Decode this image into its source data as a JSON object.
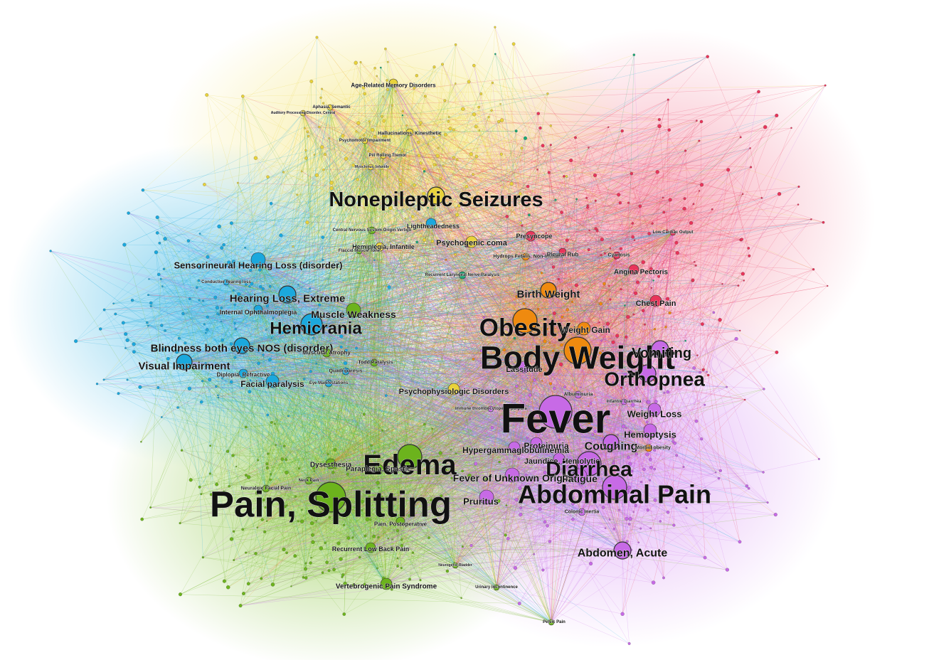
{
  "diagram": {
    "clusters": [
      {
        "id": "yellow",
        "color": "#e8d23a"
      },
      {
        "id": "red",
        "color": "#e8345a"
      },
      {
        "id": "blue",
        "color": "#1ba8dd"
      },
      {
        "id": "green",
        "color": "#6cb31d"
      },
      {
        "id": "purple",
        "color": "#c76ae6"
      },
      {
        "id": "orange",
        "color": "#ef8a0f"
      },
      {
        "id": "teal",
        "color": "#1aa876"
      }
    ],
    "labels": [
      {
        "text": "Age-Related Memory Disorders",
        "cluster": "yellow"
      },
      {
        "text": "Aphasia, Semantic",
        "cluster": "yellow"
      },
      {
        "text": "Auditory Processing Disorder, Central",
        "cluster": "yellow"
      },
      {
        "text": "Hallucinations, Kinesthetic",
        "cluster": "yellow"
      },
      {
        "text": "Psychomotor Impairment",
        "cluster": "yellow"
      },
      {
        "text": "Pill Rolling Tremor",
        "cluster": "yellow"
      },
      {
        "text": "Myoclonus, Infantile",
        "cluster": "yellow"
      },
      {
        "text": "Nonepileptic Seizures",
        "cluster": "yellow"
      },
      {
        "text": "Lightheadedness",
        "cluster": "blue"
      },
      {
        "text": "Central Nervous System Origin Vertigo",
        "cluster": "green"
      },
      {
        "text": "Hemiplegia, Infantile",
        "cluster": "yellow"
      },
      {
        "text": "Flaccid Muscle Tone",
        "cluster": "green"
      },
      {
        "text": "Psychogenic coma",
        "cluster": "yellow"
      },
      {
        "text": "Presyncope",
        "cluster": "red"
      },
      {
        "text": "Cyanosis",
        "cluster": "red"
      },
      {
        "text": "Low Cardiac Output",
        "cluster": "red"
      },
      {
        "text": "Hydrops Fetalis, Non-Immune",
        "cluster": "orange"
      },
      {
        "text": "Pleural Rub",
        "cluster": "red"
      },
      {
        "text": "Angina Pectoris",
        "cluster": "red"
      },
      {
        "text": "Recurrent Laryngeal Nerve Paralysis",
        "cluster": "teal"
      },
      {
        "text": "Sensorineural Hearing Loss (disorder)",
        "cluster": "blue"
      },
      {
        "text": "Conductive hearing loss",
        "cluster": "blue"
      },
      {
        "text": "Hearing Loss, Extreme",
        "cluster": "blue"
      },
      {
        "text": "Internal Ophthalmoplegia",
        "cluster": "blue"
      },
      {
        "text": "Muscle Weakness",
        "cluster": "green"
      },
      {
        "text": "Birth Weight",
        "cluster": "orange"
      },
      {
        "text": "Chest Pain",
        "cluster": "red"
      },
      {
        "text": "Hemicrania",
        "cluster": "blue"
      },
      {
        "text": "Obesity",
        "cluster": "orange"
      },
      {
        "text": "Weight Gain",
        "cluster": "orange"
      },
      {
        "text": "Blindness both eyes NOS (disorder)",
        "cluster": "blue"
      },
      {
        "text": "Muscular Atrophy",
        "cluster": "green"
      },
      {
        "text": "Body Weight",
        "cluster": "orange"
      },
      {
        "text": "Vomiting",
        "cluster": "purple"
      },
      {
        "text": "Visual Impairment",
        "cluster": "blue"
      },
      {
        "text": "Lassitude",
        "cluster": "purple"
      },
      {
        "text": "Orthopnea",
        "cluster": "purple"
      },
      {
        "text": "Diplopia, Refractive",
        "cluster": "blue"
      },
      {
        "text": "Todd Paralysis",
        "cluster": "green"
      },
      {
        "text": "Quadriparesis",
        "cluster": "blue"
      },
      {
        "text": "Facial paralysis",
        "cluster": "blue"
      },
      {
        "text": "Eye Manifestations",
        "cluster": "blue"
      },
      {
        "text": "Albuminuria",
        "cluster": "purple"
      },
      {
        "text": "Psychophysiologic Disorders",
        "cluster": "yellow"
      },
      {
        "text": "Infantile Diarrhea",
        "cluster": "purple"
      },
      {
        "text": "Immune thrombocytopenic purpura",
        "cluster": "purple"
      },
      {
        "text": "Fever",
        "cluster": "purple"
      },
      {
        "text": "Weight Loss",
        "cluster": "purple"
      },
      {
        "text": "Hemoptysis",
        "cluster": "purple"
      },
      {
        "text": "Proteinuria",
        "cluster": "purple"
      },
      {
        "text": "Coughing",
        "cluster": "purple"
      },
      {
        "text": "Morbid obesity",
        "cluster": "orange"
      },
      {
        "text": "Hypergammaglobulinemia",
        "cluster": "purple"
      },
      {
        "text": "Edema",
        "cluster": "green"
      },
      {
        "text": "Dysesthesia",
        "cluster": "green"
      },
      {
        "text": "Paraplegia, Spastic",
        "cluster": "green"
      },
      {
        "text": "Jaundice, Hemolytic",
        "cluster": "purple"
      },
      {
        "text": "Diarrhea",
        "cluster": "purple"
      },
      {
        "text": "Fever of Unknown Origin",
        "cluster": "purple"
      },
      {
        "text": "Fatigue",
        "cluster": "purple"
      },
      {
        "text": "Neuralgic Facial Pain",
        "cluster": "green"
      },
      {
        "text": "Neck Pain",
        "cluster": "green"
      },
      {
        "text": "Pain, Splitting",
        "cluster": "green"
      },
      {
        "text": "Pruritus",
        "cluster": "purple"
      },
      {
        "text": "Abdominal Pain",
        "cluster": "purple"
      },
      {
        "text": "Pain, Postoperative",
        "cluster": "green"
      },
      {
        "text": "Colonic Inertia",
        "cluster": "purple"
      },
      {
        "text": "Recurrent Low Back Pain",
        "cluster": "green"
      },
      {
        "text": "Abdomen, Acute",
        "cluster": "purple"
      },
      {
        "text": "Neurogenic Bladder",
        "cluster": "green"
      },
      {
        "text": "Vertebrogenic Pain Syndrome",
        "cluster": "green"
      },
      {
        "text": "Urinary Incontinence",
        "cluster": "green"
      },
      {
        "text": "Pelvic Pain",
        "cluster": "green"
      }
    ]
  }
}
